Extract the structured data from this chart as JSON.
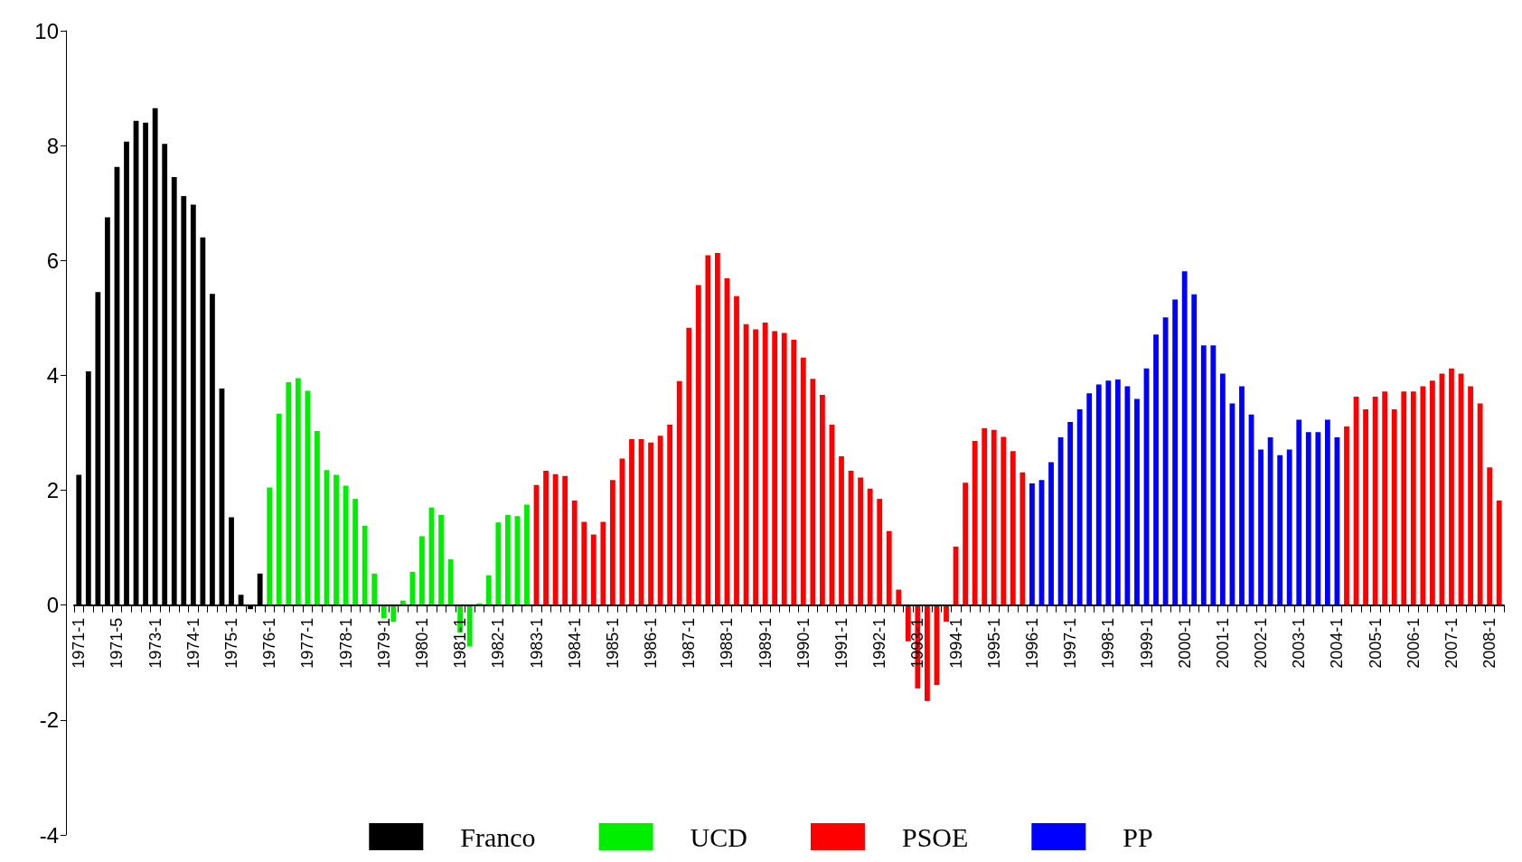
{
  "chart_data": {
    "type": "bar",
    "stacked": true,
    "legend": "bottom",
    "categories": [
      "1971-1",
      null,
      null,
      null,
      "1971-5",
      null,
      null,
      null,
      "1973-1",
      null,
      null,
      null,
      "1974-1",
      null,
      null,
      null,
      "1975-1",
      null,
      null,
      null,
      "1976-1",
      null,
      null,
      null,
      "1977-1",
      null,
      null,
      null,
      "1978-1",
      null,
      null,
      null,
      "1979-1",
      null,
      null,
      null,
      "1980-1",
      null,
      null,
      null,
      "1981-1",
      null,
      null,
      null,
      "1982-1",
      null,
      null,
      null,
      "1983-1",
      null,
      null,
      null,
      "1984-1",
      null,
      null,
      null,
      "1985-1",
      null,
      null,
      null,
      "1986-1",
      null,
      null,
      null,
      "1987-1",
      null,
      null,
      null,
      "1988-1",
      null,
      null,
      null,
      "1989-1",
      null,
      null,
      null,
      "1990-1",
      null,
      null,
      null,
      "1991-1",
      null,
      null,
      null,
      "1992-1",
      null,
      null,
      null,
      "1993-1",
      null,
      null,
      null,
      "1994-1",
      null,
      null,
      null,
      "1995-1",
      null,
      null,
      null,
      "1996-1",
      null,
      null,
      null,
      "1997-1",
      null,
      null,
      null,
      "1998-1",
      null,
      null,
      null,
      "1999-1",
      null,
      null,
      null,
      "2000-1",
      null,
      null,
      null,
      "2001-1",
      null,
      null,
      null,
      "2002-1",
      null,
      null,
      null,
      "2003-1",
      null,
      null,
      null,
      "2004-1",
      null,
      null,
      null,
      "2005-1",
      null,
      null,
      null,
      "2006-1",
      null,
      null,
      null,
      "2007-1",
      null,
      null,
      null,
      "2008-1",
      null
    ],
    "series": [
      {
        "name": "Franco",
        "color": "#000000",
        "values": [
          2.27,
          4.07,
          5.45,
          6.75,
          7.63,
          8.07,
          8.43,
          8.4,
          8.65,
          8.03,
          7.45,
          7.12,
          6.97,
          6.4,
          5.42,
          3.77,
          1.53,
          0.18,
          -0.07,
          0.55,
          null,
          null,
          null,
          null,
          null,
          null,
          null,
          null,
          null,
          null,
          null,
          null,
          null,
          null,
          null,
          null,
          null,
          null,
          null,
          null,
          null,
          null,
          null,
          null,
          null,
          null,
          null,
          null,
          null,
          null,
          null,
          null,
          null,
          null,
          null,
          null,
          null,
          null,
          null,
          null,
          null,
          null,
          null,
          null,
          null,
          null,
          null,
          null,
          null,
          null,
          null,
          null,
          null,
          null,
          null,
          null,
          null,
          null,
          null,
          null,
          null,
          null,
          null,
          null,
          null,
          null,
          null,
          null,
          null,
          null,
          null,
          null,
          null,
          null,
          null,
          null,
          null,
          null,
          null,
          null,
          null,
          null,
          null,
          null,
          null,
          null,
          null,
          null,
          null,
          null,
          null,
          null,
          null,
          null,
          null,
          null,
          null,
          null,
          null,
          null,
          null,
          null,
          null,
          null,
          null,
          null,
          null,
          null,
          null,
          null,
          null,
          null,
          null,
          null,
          null,
          null,
          null,
          null,
          null,
          null,
          null,
          null,
          null,
          null,
          null,
          null,
          null,
          null,
          null,
          null
        ]
      },
      {
        "name": "UCD",
        "color": "#00ee00",
        "values": [
          null,
          null,
          null,
          null,
          null,
          null,
          null,
          null,
          null,
          null,
          null,
          null,
          null,
          null,
          null,
          null,
          null,
          null,
          null,
          null,
          2.05,
          3.33,
          3.88,
          3.95,
          3.73,
          3.03,
          2.35,
          2.27,
          2.08,
          1.85,
          1.38,
          0.55,
          -0.23,
          -0.29,
          0.08,
          0.58,
          1.2,
          1.7,
          1.57,
          0.8,
          -0.48,
          -0.72,
          0.03,
          0.52,
          1.44,
          1.57,
          1.55,
          1.75,
          null,
          null,
          null,
          null,
          null,
          null,
          null,
          null,
          null,
          null,
          null,
          null,
          null,
          null,
          null,
          null,
          null,
          null,
          null,
          null,
          null,
          null,
          null,
          null,
          null,
          null,
          null,
          null,
          null,
          null,
          null,
          null,
          null,
          null,
          null,
          null,
          null,
          null,
          null,
          null,
          null,
          null,
          null,
          null,
          null,
          null,
          null,
          null,
          null,
          null,
          null,
          null,
          null,
          null,
          null,
          null,
          null,
          null,
          null,
          null,
          null,
          null,
          null,
          null,
          null,
          null,
          null,
          null,
          null,
          null,
          null,
          null,
          null,
          null,
          null,
          null,
          null,
          null,
          null,
          null,
          null,
          null,
          null,
          null,
          null,
          null,
          null,
          null,
          null,
          null,
          null,
          null,
          null,
          null,
          null,
          null,
          null,
          null,
          null,
          null,
          null,
          null
        ]
      },
      {
        "name": "PSOE",
        "color": "#ff0000",
        "values": [
          null,
          null,
          null,
          null,
          null,
          null,
          null,
          null,
          null,
          null,
          null,
          null,
          null,
          null,
          null,
          null,
          null,
          null,
          null,
          null,
          null,
          null,
          null,
          null,
          null,
          null,
          null,
          null,
          null,
          null,
          null,
          null,
          null,
          null,
          null,
          null,
          null,
          null,
          null,
          null,
          null,
          null,
          null,
          null,
          null,
          null,
          null,
          null,
          2.09,
          2.34,
          2.28,
          2.25,
          1.82,
          1.45,
          1.23,
          1.45,
          2.18,
          2.55,
          2.89,
          2.89,
          2.83,
          2.95,
          3.14,
          3.9,
          4.83,
          5.57,
          6.09,
          6.13,
          5.69,
          5.38,
          4.89,
          4.8,
          4.92,
          4.77,
          4.74,
          4.62,
          4.31,
          3.94,
          3.66,
          3.14,
          2.59,
          2.34,
          2.22,
          2.03,
          1.85,
          1.29,
          0.27,
          -0.63,
          -1.45,
          -1.67,
          -1.39,
          -0.29,
          1.02,
          2.13,
          2.86,
          3.08,
          3.05,
          2.93,
          2.68,
          2.31,
          null,
          null,
          null,
          null,
          null,
          null,
          null,
          null,
          null,
          null,
          null,
          null,
          null,
          null,
          null,
          null,
          null,
          null,
          null,
          null,
          null,
          null,
          null,
          null,
          null,
          null,
          null,
          null,
          null,
          null,
          null,
          null,
          null,
          3.11,
          3.63,
          3.41,
          3.63,
          3.72,
          3.41,
          3.72,
          3.72,
          3.81,
          3.91,
          4.03,
          4.12,
          4.03,
          3.81,
          3.51,
          2.4,
          1.82
        ]
      },
      {
        "name": "PP",
        "color": "#0000ff",
        "values": [
          null,
          null,
          null,
          null,
          null,
          null,
          null,
          null,
          null,
          null,
          null,
          null,
          null,
          null,
          null,
          null,
          null,
          null,
          null,
          null,
          null,
          null,
          null,
          null,
          null,
          null,
          null,
          null,
          null,
          null,
          null,
          null,
          null,
          null,
          null,
          null,
          null,
          null,
          null,
          null,
          null,
          null,
          null,
          null,
          null,
          null,
          null,
          null,
          null,
          null,
          null,
          null,
          null,
          null,
          null,
          null,
          null,
          null,
          null,
          null,
          null,
          null,
          null,
          null,
          null,
          null,
          null,
          null,
          null,
          null,
          null,
          null,
          null,
          null,
          null,
          null,
          null,
          null,
          null,
          null,
          null,
          null,
          null,
          null,
          null,
          null,
          null,
          null,
          null,
          null,
          null,
          null,
          null,
          null,
          null,
          null,
          null,
          null,
          null,
          null,
          2.12,
          2.18,
          2.49,
          2.92,
          3.19,
          3.41,
          3.69,
          3.84,
          3.91,
          3.93,
          3.81,
          3.59,
          4.12,
          4.71,
          5.01,
          5.32,
          5.81,
          5.41,
          4.52,
          4.52,
          4.03,
          3.51,
          3.81,
          3.32,
          2.71,
          2.92,
          2.61,
          2.71,
          3.23,
          3.01,
          3.01,
          3.23,
          2.92,
          null,
          null,
          null,
          null,
          null,
          null,
          null,
          null,
          null,
          null,
          null,
          null,
          null,
          null,
          null,
          null,
          null
        ]
      }
    ],
    "ylim": [
      -4,
      10
    ],
    "yticks": [
      -4,
      -2,
      0,
      2,
      4,
      6,
      8,
      10
    ]
  }
}
